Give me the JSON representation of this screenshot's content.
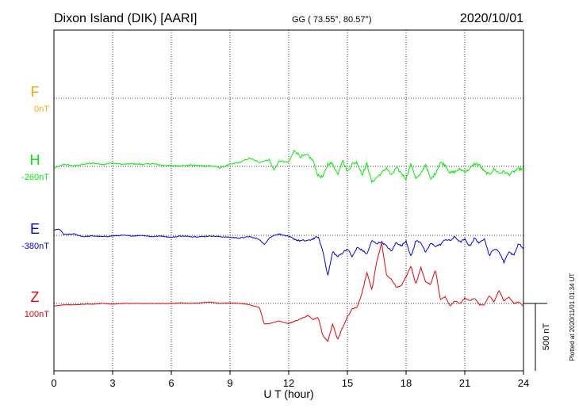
{
  "header": {
    "station": "Dixon Island (DIK)  [AARI]",
    "coords": "GG ( 73.55°,  80.57°)",
    "date": "2020/10/01"
  },
  "footer": {
    "plotted": "Plotted at 2020/11/01 01:34 UT"
  },
  "chart_data": {
    "type": "line",
    "xlabel": "U T (hour)",
    "xlim": [
      0,
      24
    ],
    "xticks": [
      0,
      3,
      6,
      9,
      12,
      15,
      18,
      21,
      24
    ],
    "scale_bar": "500 nT",
    "grid": true,
    "channels": [
      {
        "name": "F",
        "offset_label": "0nT",
        "color": "#FFA500"
      },
      {
        "name": "H",
        "offset_label": "-260nT",
        "color": "#00EE00"
      },
      {
        "name": "E",
        "offset_label": "-380nT",
        "color": "#0000EE"
      },
      {
        "name": "Z",
        "offset_label": "100nT",
        "color": "#EE0000"
      }
    ],
    "series": [
      {
        "name": "H",
        "color": "#00EE00",
        "baseline_row": 1,
        "x": [
          0,
          0.5,
          1,
          1.5,
          2,
          2.5,
          3,
          3.5,
          4,
          4.5,
          5,
          5.5,
          6,
          6.5,
          7,
          7.5,
          8,
          8.5,
          9,
          9.5,
          10,
          10.5,
          11,
          11.25,
          11.5,
          12,
          12.3,
          12.6,
          13,
          13.25,
          13.5,
          13.75,
          14,
          14.25,
          14.5,
          14.75,
          15,
          15.25,
          15.5,
          15.75,
          16,
          16.25,
          16.5,
          16.75,
          17,
          17.25,
          17.5,
          17.75,
          18,
          18.25,
          18.5,
          18.75,
          19,
          19.25,
          19.5,
          19.75,
          20,
          20.25,
          20.5,
          20.75,
          21,
          21.25,
          21.5,
          21.75,
          22,
          22.25,
          22.5,
          22.75,
          23,
          23.25,
          23.5,
          23.75,
          24
        ],
        "y": [
          -15,
          15,
          5,
          15,
          25,
          15,
          25,
          15,
          20,
          15,
          20,
          10,
          5,
          5,
          10,
          5,
          5,
          -10,
          15,
          30,
          60,
          30,
          50,
          -30,
          40,
          30,
          120,
          75,
          80,
          40,
          -70,
          -80,
          20,
          20,
          -60,
          50,
          -40,
          20,
          30,
          -60,
          20,
          -120,
          -80,
          -50,
          -10,
          -70,
          -10,
          -50,
          -90,
          20,
          -90,
          -60,
          20,
          -100,
          -50,
          30,
          10,
          -50,
          -40,
          -20,
          -40,
          -20,
          20,
          10,
          -40,
          -60,
          -20,
          -50,
          -40,
          -60,
          -40,
          -20,
          -20
        ]
      },
      {
        "name": "E",
        "color": "#0000EE",
        "baseline_row": 2,
        "x": [
          0,
          0.3,
          0.5,
          1,
          1.5,
          2,
          2.5,
          3,
          3.5,
          4,
          4.5,
          5,
          5.5,
          6,
          6.5,
          7,
          7.5,
          8,
          8.5,
          9,
          9.5,
          10,
          10.5,
          10.75,
          11,
          11.25,
          11.5,
          12,
          12.5,
          13,
          13.5,
          13.75,
          14,
          14.25,
          14.5,
          14.75,
          15,
          15.25,
          15.5,
          15.75,
          16,
          16.25,
          16.5,
          16.75,
          17,
          17.25,
          17.5,
          17.75,
          18,
          18.25,
          18.5,
          18.75,
          19,
          19.25,
          19.5,
          19.75,
          20,
          20.25,
          20.5,
          20.75,
          21,
          21.25,
          21.5,
          21.75,
          22,
          22.25,
          22.5,
          22.75,
          23,
          23.25,
          23.5,
          23.75,
          24
        ],
        "y": [
          40,
          45,
          5,
          10,
          -10,
          -5,
          -10,
          -5,
          0,
          -5,
          0,
          -10,
          -5,
          -15,
          -5,
          -10,
          -10,
          -5,
          -10,
          -15,
          -20,
          -10,
          -30,
          -70,
          -20,
          0,
          10,
          -10,
          -40,
          -40,
          -10,
          -120,
          -300,
          -120,
          -160,
          -130,
          -100,
          -160,
          -90,
          -110,
          -140,
          -40,
          -60,
          -50,
          -80,
          -120,
          -50,
          -80,
          -40,
          -160,
          -40,
          -50,
          -130,
          -60,
          -80,
          -70,
          -30,
          -40,
          -10,
          -50,
          -30,
          -80,
          -20,
          -60,
          -20,
          -150,
          -100,
          -120,
          -200,
          -120,
          -150,
          -60,
          -100
        ]
      },
      {
        "name": "Z",
        "color": "#EE0000",
        "baseline_row": 3,
        "x": [
          0,
          0.5,
          1,
          1.5,
          2,
          2.5,
          3,
          3.5,
          4,
          4.5,
          5,
          5.5,
          6,
          6.5,
          7,
          7.5,
          8,
          8.5,
          9,
          9.5,
          10,
          10.5,
          10.75,
          11,
          11.5,
          12,
          12.5,
          13,
          13.25,
          13.5,
          13.75,
          14,
          14.25,
          14.5,
          14.75,
          15,
          15.25,
          15.5,
          15.75,
          16,
          16.25,
          16.5,
          16.75,
          17,
          17.25,
          17.5,
          17.75,
          18,
          18.25,
          18.5,
          18.75,
          19,
          19.25,
          19.5,
          19.75,
          20,
          20.25,
          20.5,
          20.75,
          21,
          21.25,
          21.5,
          21.75,
          22,
          22.25,
          22.5,
          22.75,
          23,
          23.25,
          23.5,
          23.75,
          24
        ],
        "y": [
          -20,
          -10,
          -10,
          -5,
          -5,
          0,
          -5,
          0,
          0,
          0,
          0,
          0,
          0,
          5,
          0,
          5,
          10,
          0,
          5,
          0,
          -10,
          -30,
          -150,
          -150,
          -130,
          -150,
          -120,
          -90,
          -120,
          -100,
          -240,
          -280,
          -150,
          -270,
          -180,
          -100,
          -40,
          -30,
          80,
          230,
          100,
          310,
          450,
          210,
          180,
          120,
          130,
          200,
          280,
          140,
          270,
          160,
          140,
          250,
          30,
          50,
          -20,
          20,
          0,
          40,
          20,
          40,
          -10,
          -10,
          60,
          10,
          100,
          20,
          50,
          0,
          10,
          -20
        ]
      }
    ]
  }
}
